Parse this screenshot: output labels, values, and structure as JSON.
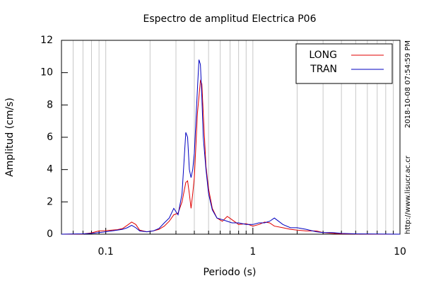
{
  "chart_data": {
    "type": "line",
    "title": "Espectro de amplitud Electrica P06",
    "xlabel": "Periodo (s)",
    "ylabel": "Amplitud (cm/s)",
    "side_texts": [
      "2018-10-08 07:54:59 PM",
      "http://www.lisucr.ac.cr"
    ],
    "xscale": "log",
    "xlim": [
      0.05,
      10
    ],
    "ylim": [
      0,
      12
    ],
    "xticks": [
      0.1,
      1,
      10
    ],
    "xminorticks": [
      0.06,
      0.07,
      0.08,
      0.09,
      0.2,
      0.3,
      0.4,
      0.5,
      0.6,
      0.7,
      0.8,
      0.9,
      2,
      3,
      4,
      5,
      6,
      7,
      8,
      9
    ],
    "yticks": [
      0,
      2,
      4,
      6,
      8,
      10,
      12
    ],
    "grid": true,
    "legend": "upper right",
    "x": [
      0.05,
      0.07,
      0.08,
      0.09,
      0.1,
      0.11,
      0.12,
      0.13,
      0.14,
      0.15,
      0.16,
      0.17,
      0.19,
      0.21,
      0.23,
      0.25,
      0.27,
      0.29,
      0.31,
      0.33,
      0.35,
      0.36,
      0.37,
      0.38,
      0.39,
      0.4,
      0.41,
      0.42,
      0.43,
      0.44,
      0.45,
      0.46,
      0.48,
      0.5,
      0.53,
      0.57,
      0.62,
      0.67,
      0.72,
      0.8,
      0.9,
      1.0,
      1.1,
      1.2,
      1.3,
      1.4,
      1.6,
      1.8,
      2.0,
      2.3,
      2.7,
      3.0,
      3.5,
      4.0,
      5,
      7,
      10
    ],
    "series": [
      {
        "name": "LONG",
        "color": "#e00000",
        "values": [
          0,
          0.01,
          0.08,
          0.2,
          0.22,
          0.25,
          0.28,
          0.35,
          0.55,
          0.75,
          0.6,
          0.25,
          0.15,
          0.2,
          0.3,
          0.5,
          0.8,
          1.2,
          1.3,
          2.0,
          3.2,
          3.3,
          2.5,
          1.6,
          2.5,
          3.5,
          5.5,
          7.5,
          8.5,
          9.5,
          9.3,
          7.5,
          4.2,
          2.8,
          1.6,
          1.0,
          0.8,
          1.1,
          0.9,
          0.6,
          0.65,
          0.5,
          0.6,
          0.75,
          0.7,
          0.5,
          0.4,
          0.3,
          0.25,
          0.2,
          0.2,
          0.1,
          0.05,
          0.02,
          0.01,
          0,
          0
        ]
      },
      {
        "name": "TRAN",
        "color": "#0000c0",
        "values": [
          0,
          0.02,
          0.05,
          0.1,
          0.15,
          0.2,
          0.25,
          0.3,
          0.4,
          0.55,
          0.4,
          0.2,
          0.15,
          0.2,
          0.35,
          0.7,
          1.0,
          1.6,
          1.2,
          2.5,
          6.3,
          6.0,
          4.0,
          3.5,
          4.0,
          5.0,
          7.0,
          9.0,
          10.8,
          10.5,
          8.5,
          6.0,
          4.0,
          2.5,
          1.5,
          1.0,
          0.9,
          0.8,
          0.7,
          0.7,
          0.6,
          0.6,
          0.7,
          0.7,
          0.8,
          1.0,
          0.6,
          0.4,
          0.4,
          0.3,
          0.15,
          0.1,
          0.1,
          0.05,
          0.02,
          0.01,
          0
        ]
      }
    ]
  }
}
